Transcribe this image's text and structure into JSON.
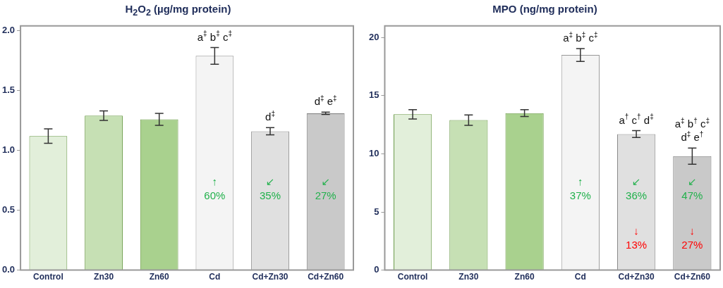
{
  "chart_data": [
    {
      "type": "bar",
      "title": "H$_{2}$O$_{2}$ (µg/mg protein)",
      "categories": [
        "Control",
        "Zn30",
        "Zn60",
        "Cd",
        "Cd+Zn30",
        "Cd+Zn60"
      ],
      "values": [
        1.12,
        1.29,
        1.26,
        1.79,
        1.16,
        1.31
      ],
      "errors": [
        0.06,
        0.04,
        0.05,
        0.07,
        0.03,
        0.01
      ],
      "colors": [
        "#e2efda",
        "#c6e0b4",
        "#a9d18e",
        "#f4f4f4",
        "#e0e0e0",
        "#c9c9c9"
      ],
      "ylim": [
        0,
        2.04
      ],
      "yticks": [
        {
          "value": 0,
          "label": "0.0"
        },
        0.5,
        {
          "value": 1,
          "label": "1.0"
        },
        1.5,
        {
          "value": 2,
          "label": "2.0"
        }
      ],
      "grid": false,
      "annotations": [
        {
          "text": "a$^{‡}$ b$^{‡}$ c$^{‡}$",
          "x": "Cd",
          "y": 1.79
        },
        "↑",
        "60%",
        {
          "text": "d$^{‡}$",
          "x": "Cd+Zn30",
          "y": 1.16
        },
        "↙",
        "35%",
        {
          "text": "d$^{‡}$ e$^{‡}$",
          "x": "Cd+Zn60",
          "y": 1.31
        },
        "↙",
        "27%"
      ]
    },
    {
      "type": "bar",
      "title": "MPO (ng/mg protein)",
      "categories": [
        "Control",
        "Zn30",
        "Zn60",
        "Cd",
        "Cd+Zn30",
        "Cd+Zn60"
      ],
      "values": [
        13.4,
        12.9,
        13.5,
        18.5,
        11.7,
        9.8
      ],
      "errors": [
        0.4,
        0.45,
        0.3,
        0.55,
        0.3,
        0.7
      ],
      "colors": [
        "#e2efda",
        "#c6e0b4",
        "#a9d18e",
        "#f4f4f4",
        "#e0e0e0",
        "#c9c9c9"
      ],
      "ylim": [
        0,
        21
      ],
      "yticks": [
        0,
        5,
        10,
        15,
        20
      ],
      "grid": false,
      "annotations": [
        {
          "text": "a$^{‡}$ b$^{‡}$ c$^{‡}$",
          "x": "Cd",
          "y": 18.5
        },
        "↑",
        "37%",
        {
          "text": "a$^{†}$ c$^{†}$ d$^{‡}$",
          "x": "Cd+Zn30",
          "y": 11.7
        },
        "↙",
        "36%",
        "↓",
        "13%",
        {
          "text": "a$^{‡}$ b$^{†}$ c$^{‡}$",
          "x": "Cd+Zn60",
          "y": 9.8
        },
        {
          "text": "d$^{‡}$ e$^{†}$",
          "x": "Cd+Zn60",
          "y": 9.8
        },
        "↙",
        "47%",
        "↓",
        "27%"
      ]
    }
  ]
}
